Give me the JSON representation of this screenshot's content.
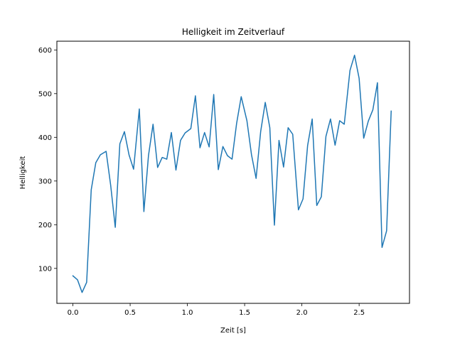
{
  "chart_data": {
    "type": "line",
    "title": "Helligkeit im Zeitverlauf",
    "xlabel": "Zeit [s]",
    "ylabel": "Helligkeit",
    "xlim": [
      -0.14,
      2.94
    ],
    "ylim": [
      20,
      620
    ],
    "xticks": [
      0.0,
      0.5,
      1.0,
      1.5,
      2.0,
      2.5
    ],
    "xtick_labels": [
      "0.0",
      "0.5",
      "1.0",
      "1.5",
      "2.0",
      "2.5"
    ],
    "yticks": [
      100,
      200,
      300,
      400,
      500,
      600
    ],
    "ytick_labels": [
      "100",
      "200",
      "300",
      "400",
      "500",
      "600"
    ],
    "grid": false,
    "series": [
      {
        "name": "",
        "color": "#1f77b4",
        "x": [
          0.0,
          0.04,
          0.08,
          0.12,
          0.16,
          0.2,
          0.24,
          0.29,
          0.33,
          0.37,
          0.41,
          0.45,
          0.49,
          0.53,
          0.58,
          0.62,
          0.66,
          0.7,
          0.74,
          0.78,
          0.82,
          0.86,
          0.9,
          0.94,
          0.98,
          1.03,
          1.07,
          1.11,
          1.15,
          1.19,
          1.23,
          1.27,
          1.31,
          1.35,
          1.39,
          1.43,
          1.47,
          1.52,
          1.56,
          1.6,
          1.64,
          1.68,
          1.72,
          1.76,
          1.8,
          1.84,
          1.88,
          1.92,
          1.97,
          2.01,
          2.05,
          2.09,
          2.13,
          2.17,
          2.21,
          2.25,
          2.29,
          2.33,
          2.37,
          2.42,
          2.46,
          2.5,
          2.54,
          2.58,
          2.62,
          2.66,
          2.7,
          2.74,
          2.78
        ],
        "y": [
          83,
          74,
          45,
          68,
          280,
          342,
          360,
          368,
          290,
          194,
          385,
          413,
          360,
          327,
          465,
          230,
          358,
          430,
          331,
          354,
          350,
          411,
          325,
          393,
          410,
          420,
          495,
          376,
          411,
          378,
          498,
          326,
          379,
          358,
          350,
          432,
          493,
          438,
          360,
          306,
          413,
          480,
          422,
          199,
          393,
          332,
          422,
          407,
          234,
          259,
          381,
          442,
          244,
          264,
          402,
          442,
          382,
          438,
          430,
          553,
          588,
          535,
          398,
          437,
          463,
          525,
          148,
          186,
          460
        ]
      }
    ]
  }
}
